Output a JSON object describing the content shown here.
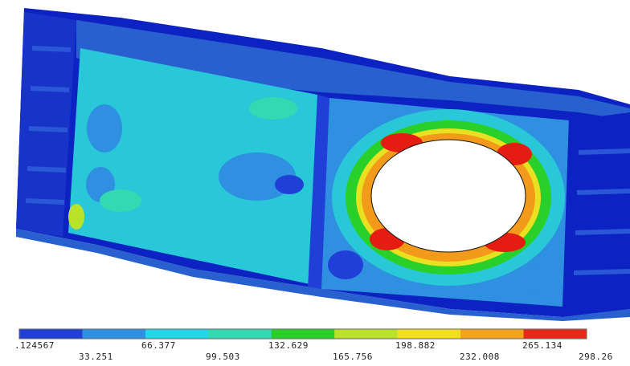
{
  "legend": {
    "colors": [
      "#1f3fd6",
      "#2f8fe0",
      "#22d7e6",
      "#33d9b0",
      "#2ad02a",
      "#b8e32a",
      "#f2e01e",
      "#f3a21a",
      "#e82a1a"
    ],
    "labels_top": [
      ".124567",
      "66.377",
      "132.629",
      "198.882",
      "265.134"
    ],
    "labels_bottom": [
      "33.251",
      "99.503",
      "165.756",
      "232.008",
      "298.26"
    ]
  },
  "colors": {
    "min_blue": "#0a1fb8",
    "mid_blue": "#2f6fd8",
    "light_blue": "#3aa6e6",
    "cyan": "#28c8d8",
    "green": "#2ad02a",
    "yellow": "#e8e020",
    "orange": "#f39a1a",
    "red": "#e51c12"
  }
}
